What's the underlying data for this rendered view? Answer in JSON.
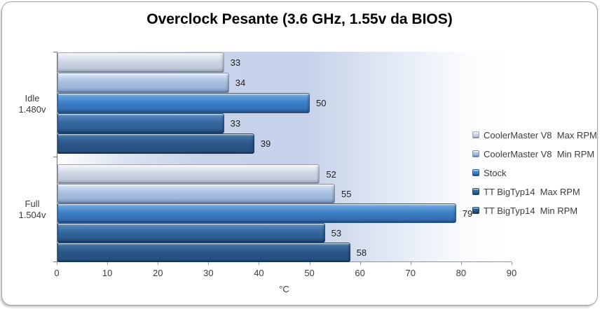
{
  "chart_data": {
    "type": "bar",
    "orientation": "horizontal",
    "title": "Overclock Pesante (3.6 GHz, 1.55v da BIOS)",
    "xlabel": "°C",
    "xlim": [
      0,
      90
    ],
    "xticks": [
      0,
      10,
      20,
      30,
      40,
      50,
      60,
      70,
      80,
      90
    ],
    "grid": false,
    "legend_position": "right",
    "data_labels": true,
    "categories": [
      {
        "line1": "Idle",
        "line2": "1.480v"
      },
      {
        "line1": "Full",
        "line2": "1.504v"
      }
    ],
    "series": [
      {
        "name": "CoolerMaster V8  Max RPM",
        "color": "#c8d2e2",
        "values": [
          33,
          52
        ]
      },
      {
        "name": "CoolerMaster V8  Min RPM",
        "color": "#a3b9dc",
        "values": [
          34,
          55
        ]
      },
      {
        "name": "Stock",
        "color": "#3c7dc5",
        "values": [
          50,
          79
        ]
      },
      {
        "name": "TT BigTyp14  Max RPM",
        "color": "#31649e",
        "values": [
          33,
          53
        ]
      },
      {
        "name": "TT BigTyp14  Min RPM",
        "color": "#2a5384",
        "values": [
          39,
          58
        ]
      }
    ]
  }
}
